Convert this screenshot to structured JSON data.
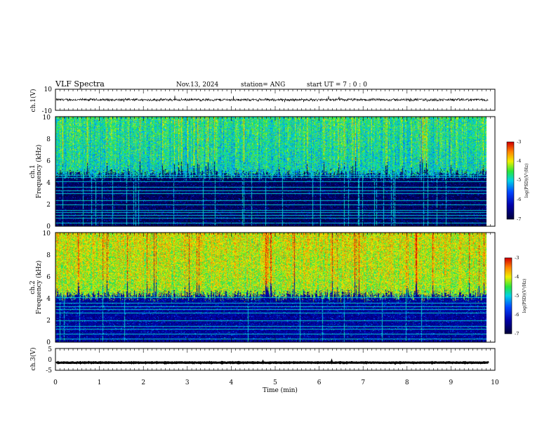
{
  "header": {
    "title": "VLF Spectra",
    "date": "Nov.13, 2024",
    "station": "station= ANG",
    "start_ut": "start  UT  =   7 : 0  : 0"
  },
  "chart_data": {
    "type": "heatmap",
    "title": "VLF Spectra",
    "xlabel": "Time  (min)",
    "xlim": [
      0,
      10
    ],
    "x_ticks": [
      "0",
      "1",
      "2",
      "3",
      "4",
      "5",
      "6",
      "7",
      "8",
      "9",
      "10"
    ],
    "data_end_min": 9.85,
    "panels": [
      {
        "id": "ch1-waveform",
        "type": "line",
        "ylabel": "ch.1(V)",
        "ylim": [
          -10,
          10
        ],
        "y_ticks": [
          "10",
          "-10"
        ],
        "signal_level": 0,
        "noise_amplitude": 1.5
      },
      {
        "id": "ch1-spectrogram",
        "type": "heatmap",
        "ylabel_channel": "ch.1",
        "ylabel": "Frequency (kHz)",
        "ylim": [
          0,
          10
        ],
        "y_ticks": [
          "0",
          "2",
          "4",
          "6",
          "8",
          "10"
        ],
        "colorbar": {
          "label": "log(PSD)(V²/Hz)",
          "range": [
            -7,
            -3
          ],
          "ticks": [
            "-3",
            "-4",
            "-5",
            "-6",
            "-7"
          ]
        },
        "cutoff_khz": 4.7,
        "high_band_mean": -4.9,
        "low_band_mean": -6.8,
        "narrowband_lines_khz": [
          0.3,
          0.75,
          1.0,
          1.3,
          1.5,
          2.0,
          2.4,
          3.0,
          3.3,
          3.6,
          4.1,
          4.5,
          4.7
        ]
      },
      {
        "id": "ch2-spectrogram",
        "type": "heatmap",
        "ylabel_channel": "ch.2",
        "ylabel": "Frequency (kHz)",
        "ylim": [
          0,
          10
        ],
        "y_ticks": [
          "0",
          "2",
          "4",
          "6",
          "8",
          "10"
        ],
        "colorbar": {
          "label": "log(PSD)(V²/Hz)",
          "range": [
            -7,
            -3
          ],
          "ticks": [
            "-3",
            "-4",
            "-5",
            "-6",
            "-7"
          ]
        },
        "cutoff_khz": 4.3,
        "high_band_mean": -4.2,
        "low_band_mean": -6.4,
        "narrowband_lines_khz": [
          0.3,
          0.75,
          1.2,
          1.5,
          2.0,
          2.7,
          3.0,
          3.3,
          3.6,
          4.1
        ]
      },
      {
        "id": "ch3-waveform",
        "type": "line",
        "ylabel": "ch.3(V)",
        "ylim": [
          -5,
          5
        ],
        "y_ticks": [
          "5",
          "0",
          "-5"
        ],
        "signal_level": -1.5,
        "noise_amplitude": 0.15
      }
    ]
  }
}
